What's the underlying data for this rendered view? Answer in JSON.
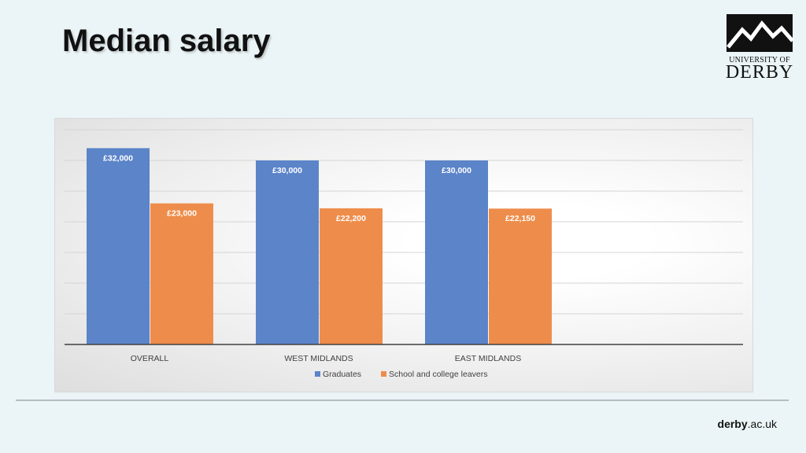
{
  "slide": {
    "title": "Median salary",
    "logo": {
      "line1": "UNIVERSITY OF",
      "line2": "DERBY",
      "icon": "mountain-peaks-icon"
    },
    "footer": {
      "domain_bold": "derby",
      "domain_rest": ".ac.uk"
    }
  },
  "colors": {
    "graduates": "#5b84c9",
    "school_leavers": "#ee8d4b",
    "background": "#ebf4f6"
  },
  "chart_data": {
    "type": "bar",
    "title": "",
    "xlabel": "",
    "ylabel": "",
    "categories": [
      "OVERALL",
      "WEST MIDLANDS",
      "EAST MIDLANDS"
    ],
    "series": [
      {
        "name": "Graduates",
        "values": [
          32000,
          30000,
          30000
        ],
        "labels": [
          "£32,000",
          "£30,000",
          "£30,000"
        ]
      },
      {
        "name": "School and college leavers",
        "values": [
          23000,
          22200,
          22150
        ],
        "labels": [
          "£23,000",
          "£22,200",
          "£22,150"
        ]
      }
    ],
    "ylim": [
      0,
      35000
    ],
    "grid": true,
    "legend": "bottom"
  }
}
